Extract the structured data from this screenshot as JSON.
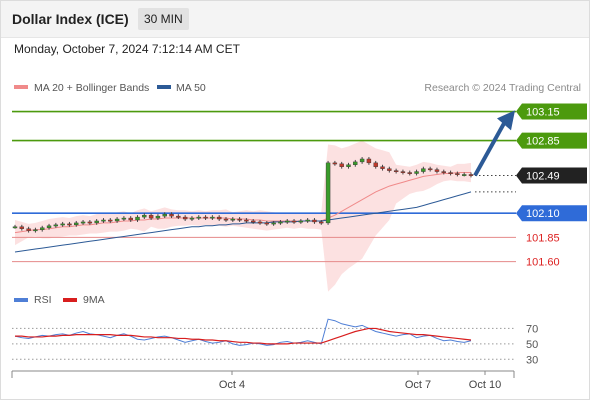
{
  "header": {
    "title": "Dollar Index (ICE)",
    "interval": "30 MIN"
  },
  "datetime": "Monday, October 7, 2024 7:12:14 AM CET",
  "legend": {
    "ma20_label": "MA 20 + Bollinger Bands",
    "ma50_label": "MA 50",
    "ma20_color": "#f08a8a",
    "ma50_color": "#2c5a96"
  },
  "copyright": "Research © 2024 Trading Central",
  "rsi_legend": {
    "rsi_label": "RSI",
    "ma_label": "9MA",
    "rsi_color": "#4f7fd6",
    "ma_color": "#d81e1e"
  },
  "colors": {
    "green": "#4c9a0e",
    "blue": "#2f6bd8",
    "red": "#e58a8a",
    "price": "#222222",
    "arrow": "#2c5a96"
  },
  "chart_data": [
    {
      "type": "line",
      "subtype": "candlestick",
      "ylim": [
        101.4,
        103.3
      ],
      "levels": [
        {
          "value": 103.15,
          "label": "103.15",
          "kind": "resistance-target"
        },
        {
          "value": 102.85,
          "label": "102.85",
          "kind": "resistance"
        },
        {
          "value": 102.49,
          "label": "102.49",
          "kind": "last-price"
        },
        {
          "value": 102.1,
          "label": "102.10",
          "kind": "pivot"
        },
        {
          "value": 101.85,
          "label": "101.85",
          "kind": "support"
        },
        {
          "value": 101.6,
          "label": "101.60",
          "kind": "support"
        }
      ],
      "x_ticks": [
        "Oct 4",
        "Oct 7",
        "Oct 10"
      ],
      "series": [
        {
          "name": "Price",
          "values": [
            101.96,
            101.94,
            101.92,
            101.93,
            101.95,
            101.97,
            101.98,
            101.99,
            101.98,
            102.0,
            102.01,
            102.0,
            102.02,
            102.03,
            102.02,
            102.04,
            102.05,
            102.03,
            102.06,
            102.08,
            102.05,
            102.07,
            102.09,
            102.07,
            102.06,
            102.04,
            102.05,
            102.06,
            102.05,
            102.06,
            102.04,
            102.03,
            102.04,
            102.03,
            102.02,
            102.01,
            102.0,
            101.99,
            102.0,
            102.01,
            102.02,
            102.01,
            102.02,
            102.03,
            102.01,
            102.0,
            102.62,
            102.61,
            102.58,
            102.6,
            102.63,
            102.66,
            102.62,
            102.58,
            102.56,
            102.54,
            102.53,
            102.52,
            102.51,
            102.53,
            102.56,
            102.55,
            102.53,
            102.52,
            102.51,
            102.5,
            102.5,
            102.49
          ]
        },
        {
          "name": "MA 20",
          "values": [
            101.9,
            101.91,
            101.92,
            101.93,
            101.93,
            101.94,
            101.95,
            101.96,
            101.96,
            101.97,
            101.98,
            101.98,
            101.99,
            102.0,
            102.0,
            102.01,
            102.02,
            102.02,
            102.03,
            102.03,
            102.04,
            102.04,
            102.05,
            102.05,
            102.05,
            102.05,
            102.05,
            102.05,
            102.05,
            102.05,
            102.05,
            102.05,
            102.04,
            102.04,
            102.04,
            102.03,
            102.03,
            102.02,
            102.02,
            102.02,
            102.02,
            102.02,
            102.02,
            102.02,
            102.02,
            102.02,
            102.05,
            102.08,
            102.12,
            102.16,
            102.2,
            102.24,
            102.28,
            102.32,
            102.35,
            102.38,
            102.4,
            102.42,
            102.44,
            102.46,
            102.48,
            102.49,
            102.5,
            102.51,
            102.51,
            102.52,
            102.52,
            102.52
          ]
        },
        {
          "name": "MA 50",
          "values": [
            101.7,
            101.71,
            101.72,
            101.73,
            101.74,
            101.75,
            101.76,
            101.77,
            101.78,
            101.79,
            101.8,
            101.81,
            101.82,
            101.83,
            101.84,
            101.85,
            101.86,
            101.87,
            101.88,
            101.89,
            101.9,
            101.91,
            101.92,
            101.93,
            101.94,
            101.95,
            101.96,
            101.96,
            101.97,
            101.97,
            101.98,
            101.98,
            101.99,
            101.99,
            102.0,
            102.0,
            102.0,
            102.0,
            102.01,
            102.01,
            102.01,
            102.01,
            102.02,
            102.02,
            102.02,
            102.02,
            102.03,
            102.04,
            102.05,
            102.06,
            102.07,
            102.08,
            102.09,
            102.1,
            102.11,
            102.12,
            102.13,
            102.14,
            102.15,
            102.16,
            102.18,
            102.2,
            102.22,
            102.24,
            102.26,
            102.28,
            102.3,
            102.32
          ]
        }
      ]
    },
    {
      "type": "line",
      "title": "RSI",
      "ylim": [
        20,
        90
      ],
      "y_ticks": [
        70,
        50,
        30
      ],
      "series": [
        {
          "name": "RSI",
          "values": [
            60,
            58,
            57,
            59,
            61,
            60,
            62,
            63,
            61,
            64,
            66,
            63,
            62,
            60,
            58,
            61,
            63,
            60,
            56,
            55,
            57,
            59,
            60,
            58,
            55,
            52,
            54,
            56,
            53,
            51,
            52,
            54,
            50,
            48,
            49,
            51,
            50,
            48,
            49,
            52,
            53,
            51,
            52,
            54,
            52,
            50,
            82,
            80,
            76,
            74,
            72,
            74,
            70,
            66,
            64,
            62,
            60,
            62,
            63,
            58,
            60,
            61,
            57,
            54,
            55,
            53,
            52,
            54
          ]
        },
        {
          "name": "9MA",
          "values": [
            60,
            60,
            59,
            59,
            59,
            60,
            60,
            61,
            61,
            62,
            62,
            62,
            62,
            62,
            62,
            61,
            61,
            61,
            60,
            59,
            59,
            58,
            58,
            58,
            57,
            57,
            56,
            56,
            55,
            55,
            54,
            54,
            53,
            52,
            52,
            51,
            51,
            50,
            50,
            50,
            50,
            51,
            51,
            51,
            51,
            51,
            54,
            57,
            60,
            63,
            66,
            68,
            70,
            70,
            68,
            66,
            65,
            64,
            63,
            62,
            62,
            61,
            60,
            59,
            58,
            57,
            56,
            55
          ]
        }
      ]
    }
  ]
}
